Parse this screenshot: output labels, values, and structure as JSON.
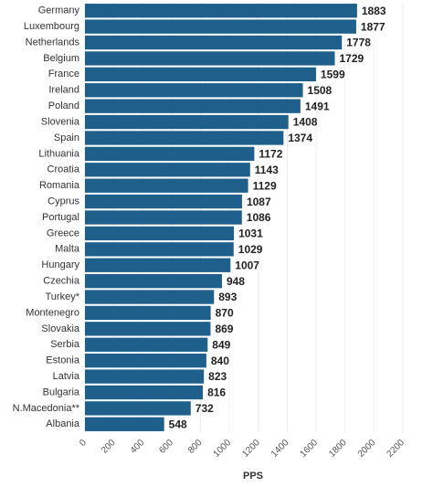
{
  "chart_data": {
    "type": "bar",
    "orientation": "horizontal",
    "categories": [
      "Germany",
      "Luxembourg",
      "Netherlands",
      "Belgium",
      "France",
      "Ireland",
      "Poland",
      "Slovenia",
      "Spain",
      "Lithuania",
      "Croatia",
      "Romania",
      "Cyprus",
      "Portugal",
      "Greece",
      "Malta",
      "Hungary",
      "Czechia",
      "Turkey*",
      "Montenegro",
      "Slovakia",
      "Serbia",
      "Estonia",
      "Latvia",
      "Bulgaria",
      "N.Macedonia**",
      "Albania"
    ],
    "values": [
      1883,
      1877,
      1778,
      1729,
      1599,
      1508,
      1491,
      1408,
      1374,
      1172,
      1143,
      1129,
      1087,
      1086,
      1031,
      1029,
      1007,
      948,
      893,
      870,
      869,
      849,
      840,
      823,
      816,
      732,
      548
    ],
    "color": "#1f5f8b",
    "x_label": "PPS",
    "xlim": [
      0,
      2200
    ],
    "xticks": [
      0,
      200,
      400,
      600,
      800,
      1000,
      1200,
      1400,
      1600,
      1800,
      2000,
      2200
    ],
    "grid": true
  }
}
